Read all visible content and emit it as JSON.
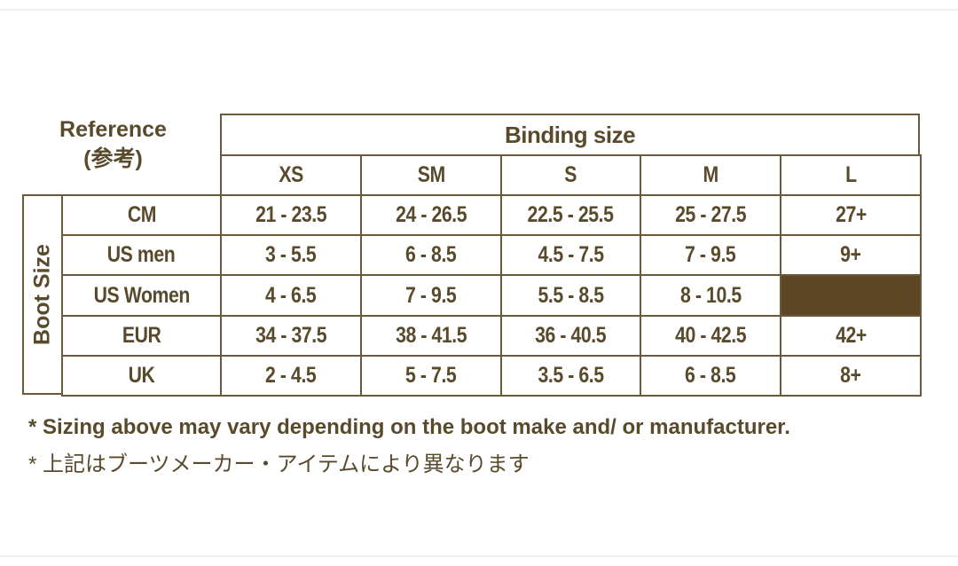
{
  "reference": {
    "line1": "Reference",
    "line2": "(参考)"
  },
  "binding_header": "Binding size",
  "boot_size_label": "Boot Size",
  "columns": [
    "XS",
    "SM",
    "S",
    "M",
    "L"
  ],
  "rows": [
    {
      "label": "CM",
      "values": [
        "21 - 23.5",
        "24 - 26.5",
        "22.5 - 25.5",
        "25 - 27.5",
        "27+"
      ]
    },
    {
      "label": "US men",
      "values": [
        "3 - 5.5",
        "6 - 8.5",
        "4.5 - 7.5",
        "7 - 9.5",
        "9+"
      ]
    },
    {
      "label": "US Women",
      "values": [
        "4 - 6.5",
        "7 - 9.5",
        "5.5 - 8.5",
        "8 - 10.5",
        ""
      ]
    },
    {
      "label": "EUR",
      "values": [
        "34 - 37.5",
        "38 - 41.5",
        "36 - 40.5",
        "40 - 42.5",
        "42+"
      ]
    },
    {
      "label": "UK",
      "values": [
        "2 - 4.5",
        "5 - 7.5",
        "3.5 - 6.5",
        "6 - 8.5",
        "8+"
      ]
    }
  ],
  "filled_cell_color": "#5c4624",
  "notes": [
    "* Sizing above may vary depending on the boot make and/ or manufacturer.",
    "* 上記はブーツメーカー・アイテムにより異なります"
  ]
}
